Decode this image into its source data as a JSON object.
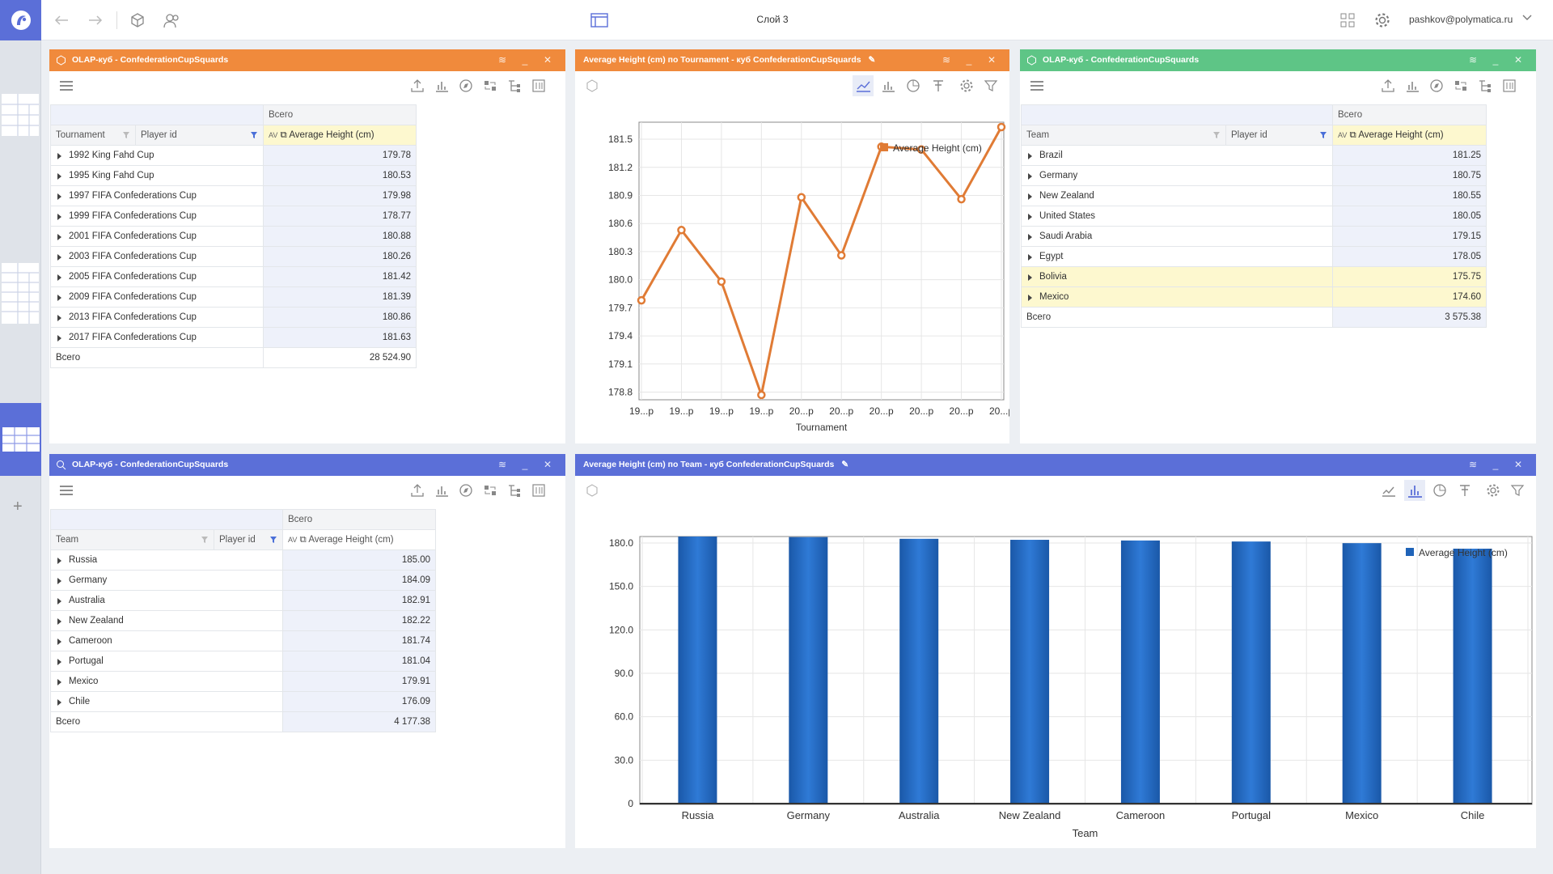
{
  "app": {
    "layer_title": "Слой 3",
    "user": "pashkov@polymatica.ru"
  },
  "panel_tl": {
    "title": "OLAP-куб - ConfederationCupSquards",
    "total_header": "Всего",
    "col_dim1": "Tournament",
    "col_dim2": "Player id",
    "measure": "Average Height (cm)",
    "rows": [
      {
        "label": "1992 King Fahd Cup",
        "value": "179.78"
      },
      {
        "label": "1995 King Fahd Cup",
        "value": "180.53"
      },
      {
        "label": "1997 FIFA Confederations Cup",
        "value": "179.98"
      },
      {
        "label": "1999 FIFA Confederations Cup",
        "value": "178.77"
      },
      {
        "label": "2001 FIFA Confederations Cup",
        "value": "180.88"
      },
      {
        "label": "2003 FIFA Confederations Cup",
        "value": "180.26"
      },
      {
        "label": "2005 FIFA Confederations Cup",
        "value": "181.42"
      },
      {
        "label": "2009 FIFA Confederations Cup",
        "value": "181.39"
      },
      {
        "label": "2013 FIFA Confederations Cup",
        "value": "180.86"
      },
      {
        "label": "2017 FIFA Confederations Cup",
        "value": "181.63"
      }
    ],
    "total_label": "Всего",
    "total_value": "28 524.90"
  },
  "panel_tr": {
    "title": "OLAP-куб - ConfederationCupSquards",
    "total_header": "Всего",
    "col_dim1": "Team",
    "col_dim2": "Player id",
    "measure": "Average Height (cm)",
    "rows": [
      {
        "label": "Brazil",
        "value": "181.25"
      },
      {
        "label": "Germany",
        "value": "180.75"
      },
      {
        "label": "New Zealand",
        "value": "180.55"
      },
      {
        "label": "United States",
        "value": "180.05"
      },
      {
        "label": "Saudi Arabia",
        "value": "179.15"
      },
      {
        "label": "Egypt",
        "value": "178.05"
      },
      {
        "label": "Bolivia",
        "value": "175.75"
      },
      {
        "label": "Mexico",
        "value": "174.60"
      }
    ],
    "total_label": "Всего",
    "total_value": "3 575.38"
  },
  "panel_bl": {
    "title": "OLAP-куб - ConfederationCupSquards",
    "total_header": "Всего",
    "col_dim1": "Team",
    "col_dim2": "Player id",
    "measure": "Average Height (cm)",
    "rows": [
      {
        "label": "Russia",
        "value": "185.00"
      },
      {
        "label": "Germany",
        "value": "184.09"
      },
      {
        "label": "Australia",
        "value": "182.91"
      },
      {
        "label": "New Zealand",
        "value": "182.22"
      },
      {
        "label": "Cameroon",
        "value": "181.74"
      },
      {
        "label": "Portugal",
        "value": "181.04"
      },
      {
        "label": "Mexico",
        "value": "179.91"
      },
      {
        "label": "Chile",
        "value": "176.09"
      }
    ],
    "total_label": "Всего",
    "total_value": "4 177.38"
  },
  "panel_tc": {
    "title": "Average Height (cm) по Tournament - куб ConfederationCupSquards"
  },
  "panel_br": {
    "title": "Average Height (cm) по Team - куб ConfederationCupSquards"
  },
  "colors": {
    "orange": "#f08a3c",
    "blue": "#5b6fd8",
    "green": "#5ec586",
    "line": "#e07b35",
    "bar": "#1f63b8"
  },
  "chart_data": [
    {
      "type": "line",
      "title": "",
      "xlabel": "Tournament",
      "ylabel": "",
      "categories": [
        "19...p",
        "19...p",
        "19...p",
        "19...p",
        "20...p",
        "20...p",
        "20...p",
        "20...p",
        "20...p",
        "20...p"
      ],
      "series": [
        {
          "name": "Average Height (cm)",
          "values": [
            179.78,
            180.53,
            179.98,
            178.77,
            180.88,
            180.26,
            181.42,
            181.39,
            180.86,
            181.63
          ]
        }
      ],
      "yticks": [
        "181.5",
        "181.2",
        "180.9",
        "180.6",
        "180.3",
        "180.0",
        "179.7",
        "179.4",
        "179.1",
        "178.8"
      ],
      "ylim": [
        178.77,
        181.63
      ],
      "legend": "top-right",
      "grid": true
    },
    {
      "type": "bar",
      "title": "",
      "xlabel": "Team",
      "ylabel": "",
      "categories": [
        "Russia",
        "Germany",
        "Australia",
        "New Zealand",
        "Cameroon",
        "Portugal",
        "Mexico",
        "Chile"
      ],
      "series": [
        {
          "name": "Average Height (cm)",
          "values": [
            185.0,
            184.09,
            182.91,
            182.22,
            181.74,
            181.04,
            179.91,
            176.09
          ]
        }
      ],
      "yticks": [
        "180.0",
        "150.0",
        "120.0",
        "90.0",
        "60.0",
        "30.0",
        "0"
      ],
      "ylim": [
        0,
        185
      ],
      "legend": "top-right",
      "grid": true
    }
  ]
}
